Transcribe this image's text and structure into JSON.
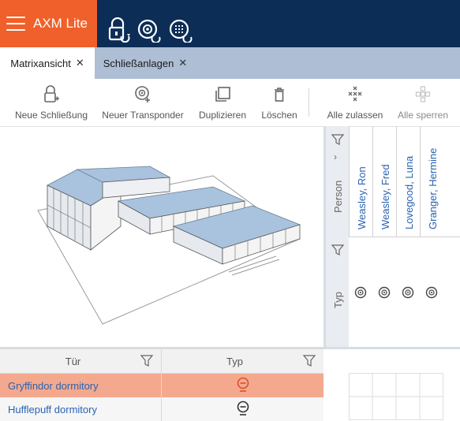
{
  "app": {
    "title": "AXM Lite"
  },
  "header_icons": [
    {
      "name": "lock-sync-icon"
    },
    {
      "name": "transponder-sync-icon"
    },
    {
      "name": "keypad-sync-icon"
    }
  ],
  "tabs": [
    {
      "label": "Matrixansicht",
      "active": true
    },
    {
      "label": "Schließanlagen",
      "active": false
    }
  ],
  "toolbar": {
    "new_lock": "Neue Schließung",
    "new_transponder": "Neuer Transponder",
    "duplicate": "Duplizieren",
    "delete": "Löschen",
    "allow_all": "Alle zulassen",
    "block_all": "Alle sperren"
  },
  "matrix": {
    "person_label": "Person",
    "type_label": "Typ",
    "persons": [
      {
        "name": "Weasley, Ron",
        "type_icon": "transponder-icon"
      },
      {
        "name": "Weasley, Fred",
        "type_icon": "transponder-icon"
      },
      {
        "name": "Lovegood, Luna",
        "type_icon": "transponder-icon"
      },
      {
        "name": "Granger, Hermine",
        "type_icon": "transponder-icon"
      }
    ]
  },
  "door_table": {
    "col_door": "Tür",
    "col_type": "Typ",
    "rows": [
      {
        "name": "Gryffindor dormitory",
        "type_icon": "lock-cylinder-icon",
        "selected": true
      },
      {
        "name": "Hufflepuff dormitory",
        "type_icon": "lock-cylinder-icon",
        "selected": false
      }
    ]
  },
  "colors": {
    "accent": "#f0602a",
    "header": "#0b2d56",
    "tabbar": "#aebed5",
    "link": "#2a63b0",
    "selected_row": "#f4a98e"
  }
}
